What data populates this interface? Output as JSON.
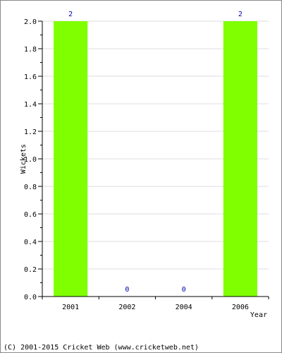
{
  "chart_data": {
    "type": "bar",
    "categories": [
      "2001",
      "2002",
      "2004",
      "2006"
    ],
    "values": [
      2,
      0,
      0,
      2
    ],
    "data_labels": [
      "2",
      "0",
      "0",
      "2"
    ],
    "ylabel": "Wickets",
    "xlabel": "Year",
    "ylim": [
      0,
      2.0
    ],
    "yticks": [
      "0.0",
      "0.2",
      "0.4",
      "0.6",
      "0.8",
      "1.0",
      "1.2",
      "1.4",
      "1.6",
      "1.8",
      "2.0"
    ],
    "grid": true,
    "colors": {
      "bar": "#80ff00",
      "grid": "#dddddd",
      "label": "#0000aa"
    }
  },
  "footer": "(C) 2001-2015 Cricket Web (www.cricketweb.net)"
}
